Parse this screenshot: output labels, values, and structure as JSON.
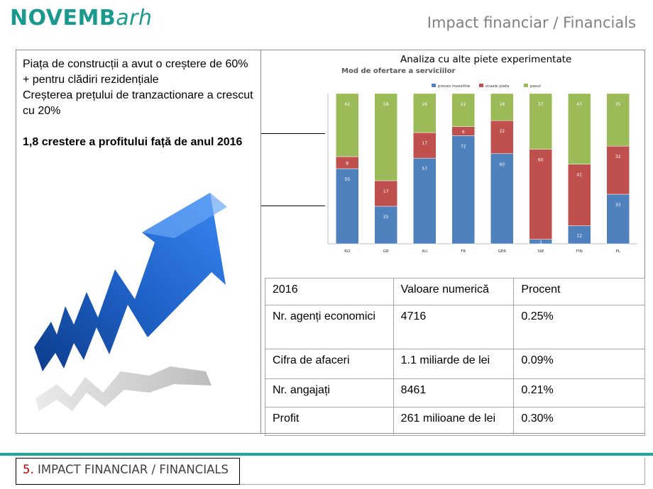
{
  "header": {
    "logo_part1": "NOVEMB",
    "logo_part2": "arh",
    "title": "Impact financiar / Financials"
  },
  "left": {
    "line1": "Piața de construcții a avut o creștere de 60% + pentru clădiri rezidențiale",
    "line2": "Creșterea prețului de tranzactionare a crescut cu 20%",
    "bold_line": "1,8 crestere a profitului față de anul 2016"
  },
  "chart_caption": "Analiza cu alte piete experimentate",
  "chart_data": {
    "type": "bar",
    "title": "Mod de ofertare a serviciilor",
    "stacked": true,
    "categories": [
      "RO",
      "GR",
      "AU",
      "FR",
      "GER",
      "SW",
      "FIN",
      "PL"
    ],
    "series": [
      {
        "name": "proces investitie",
        "color": "#4f81bd",
        "values": [
          50,
          25,
          57,
          72,
          60,
          3,
          12,
          33
        ]
      },
      {
        "name": "ocazie piața",
        "color": "#c0504d",
        "values": [
          8,
          17,
          17,
          6,
          22,
          60,
          41,
          32
        ]
      },
      {
        "name": "pasul",
        "color": "#9bbb59",
        "values": [
          42,
          58,
          26,
          22,
          18,
          37,
          47,
          35
        ]
      }
    ],
    "ylim": [
      0,
      100
    ],
    "grid": true,
    "legend": "top"
  },
  "table": {
    "header": [
      "2016",
      "Valoare numerică",
      "Procent"
    ],
    "rows": [
      [
        "Nr. agenți economici",
        "4716",
        "0.25%"
      ],
      [
        "Cifra de afaceri",
        "1.1 miliarde de lei",
        "0.09%"
      ],
      [
        "Nr. angajați",
        "8461",
        "0.21%"
      ],
      [
        "Profit",
        "261 milioane de lei",
        "0.30%"
      ]
    ]
  },
  "footer": {
    "number": "5.",
    "text": " IMPACT FINANCIAR / FINANCIALS"
  },
  "colors": {
    "brand": "#1a9a8f",
    "footer_number": "#c00000"
  }
}
